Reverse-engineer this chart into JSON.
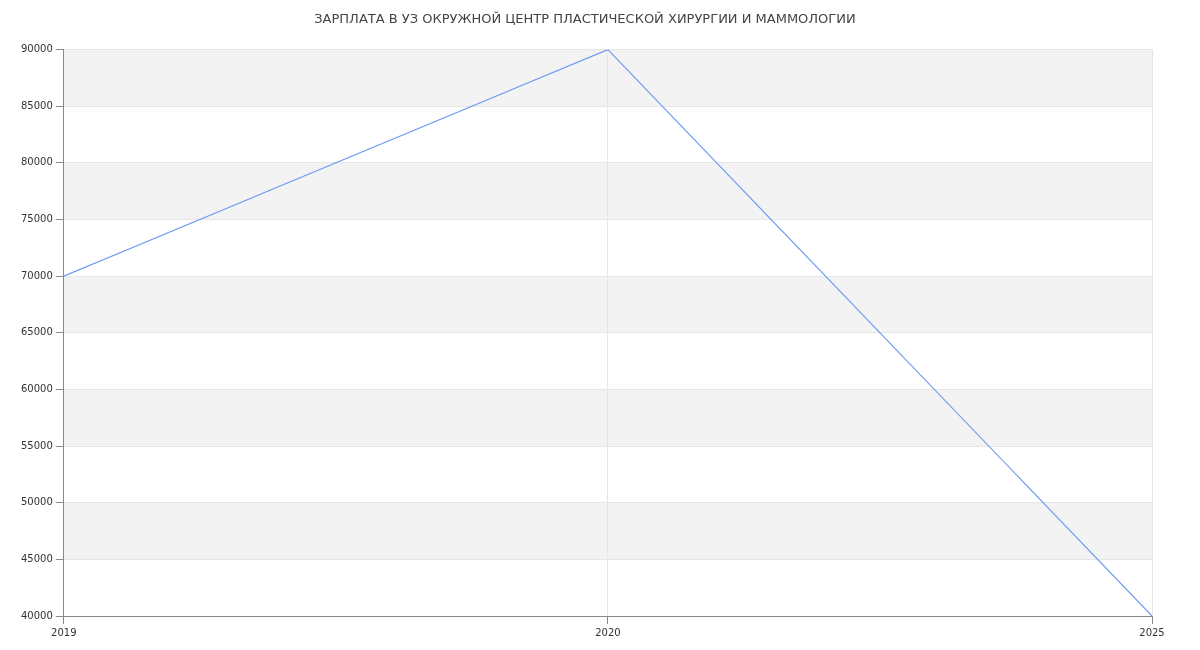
{
  "chart_data": {
    "type": "line",
    "title": "ЗАРПЛАТА В УЗ ОКРУЖНОЙ ЦЕНТР ПЛАСТИЧЕСКОЙ ХИРУРГИИ И МАММОЛОГИИ",
    "categories": [
      "2019",
      "2020",
      "2025"
    ],
    "series": [
      {
        "color": "#6f9cf0",
        "values": [
          70000,
          90000,
          40000
        ]
      }
    ],
    "ylim": [
      40000,
      90000
    ],
    "yticks": [
      40000,
      45000,
      50000,
      55000,
      60000,
      65000,
      70000,
      75000,
      80000,
      85000,
      90000
    ],
    "grid": true,
    "marker": "none",
    "line_style": "solid",
    "legend": false
  }
}
